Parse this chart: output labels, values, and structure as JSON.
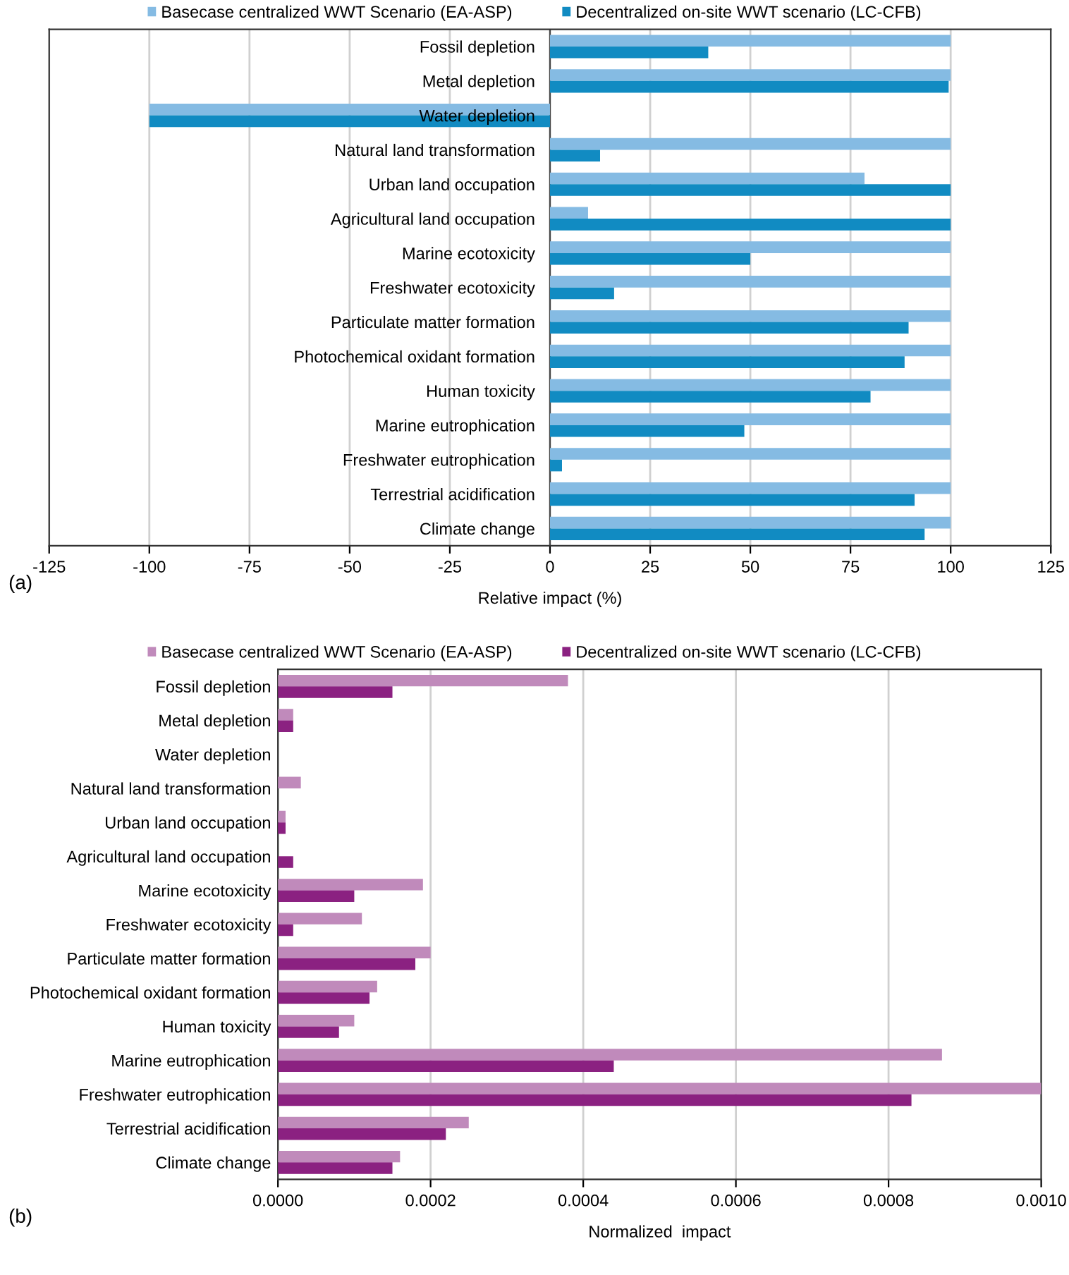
{
  "chart_data": [
    {
      "type": "bar",
      "orientation": "horizontal",
      "categories": [
        "Fossil depletion",
        "Metal depletion",
        "Water depletion",
        "Natural land transformation",
        "Urban land occupation",
        "Agricultural land occupation",
        "Marine ecotoxicity",
        "Freshwater ecotoxicity",
        "Particulate matter formation",
        "Photochemical oxidant formation",
        "Human toxicity",
        "Marine eutrophication",
        "Freshwater eutrophication",
        "Terrestrial acidification",
        "Climate change"
      ],
      "series": [
        {
          "name": "Basecase centralized WWT Scenario (EA-ASP)",
          "color": "#85bbe3",
          "values": [
            100,
            100,
            -100,
            100,
            78.5,
            9.5,
            100,
            100,
            100,
            100,
            100,
            100,
            100,
            100,
            100
          ]
        },
        {
          "name": "Decentralized on-site WWT scenario (LC-CFB)",
          "color": "#118bc2",
          "values": [
            39.5,
            99.5,
            -100,
            12.5,
            100,
            100,
            50,
            16,
            89.5,
            88.5,
            80,
            48.5,
            3,
            91,
            93.5
          ]
        }
      ],
      "xlim": [
        -125,
        125
      ],
      "xticks": [
        -125,
        -100,
        -75,
        -50,
        -25,
        0,
        25,
        50,
        75,
        100,
        125
      ],
      "xlabel": "Relative impact (%)",
      "grid": "x",
      "legend": "top",
      "annotations": [
        "(a)"
      ]
    },
    {
      "type": "bar",
      "orientation": "horizontal",
      "categories": [
        "Fossil depletion",
        "Metal depletion",
        "Water depletion",
        "Natural land transformation",
        "Urban land occupation",
        "Agricultural land occupation",
        "Marine ecotoxicity",
        "Freshwater ecotoxicity",
        "Particulate matter formation",
        "Photochemical oxidant formation",
        "Human toxicity",
        "Marine eutrophication",
        "Freshwater eutrophication",
        "Terrestrial acidification",
        "Climate change"
      ],
      "series": [
        {
          "name": "Basecase centralized WWT Scenario (EA-ASP)",
          "color": "#c08abb",
          "values": [
            0.00038,
            2e-05,
            0,
            3e-05,
            1e-05,
            0,
            0.00019,
            0.00011,
            0.0002,
            0.00013,
            0.0001,
            0.00087,
            0.001,
            0.00025,
            0.00016
          ]
        },
        {
          "name": "Decentralized on-site WWT scenario (LC-CFB)",
          "color": "#8b2181",
          "values": [
            0.00015,
            2e-05,
            0,
            0,
            1e-05,
            2e-05,
            0.0001,
            2e-05,
            0.00018,
            0.00012,
            8e-05,
            0.00044,
            0.00083,
            0.00022,
            0.00015
          ]
        }
      ],
      "xlim": [
        0,
        0.001
      ],
      "xticks": [
        {
          "value": 0,
          "label": "0.0000"
        },
        {
          "value": 0.0002,
          "label": "0.0002"
        },
        {
          "value": 0.0004,
          "label": "0.0004"
        },
        {
          "value": 0.0006,
          "label": "0.0006"
        },
        {
          "value": 0.0008,
          "label": "0.0008"
        },
        {
          "value": 0.001,
          "label": "0.0010"
        }
      ],
      "xlabel": "Normalized  impact",
      "grid": "x",
      "legend": "top",
      "annotations": [
        "(b)"
      ]
    }
  ]
}
